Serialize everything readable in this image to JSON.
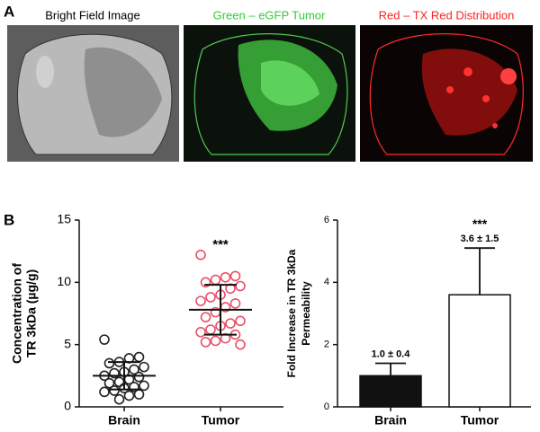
{
  "panel_labels": [
    "A",
    "B"
  ],
  "images": [
    {
      "title": "Bright Field Image",
      "color": "#000000"
    },
    {
      "title": "Green – eGFP Tumor",
      "color": "#33cc33"
    },
    {
      "title": "Red – TX Red Distribution",
      "color": "#ff2222"
    }
  ],
  "chart_data": [
    {
      "type": "dot",
      "ylabel": [
        "Concentration of",
        "TR 3kDa (µg/g)"
      ],
      "categories": [
        "Brain",
        "Tumor"
      ],
      "colors": [
        "#222222",
        "#e8506a"
      ],
      "values": [
        [
          5.4,
          4.0,
          3.9,
          3.6,
          3.5,
          3.2,
          3.0,
          2.8,
          2.7,
          2.5,
          2.4,
          2.2,
          2.0,
          1.9,
          1.7,
          1.6,
          1.5,
          1.3,
          1.2,
          1.0,
          0.9,
          0.6
        ],
        [
          12.2,
          10.5,
          10.4,
          10.2,
          10.0,
          9.7,
          9.5,
          9.0,
          8.8,
          8.5,
          8.3,
          8.0,
          7.6,
          7.2,
          6.9,
          6.7,
          6.5,
          6.2,
          6.0,
          5.8,
          5.5,
          5.3,
          5.2,
          5.0
        ]
      ],
      "means": [
        2.5,
        7.8
      ],
      "sd": [
        1.1,
        2.0
      ],
      "annotations": [
        null,
        "***"
      ],
      "ylim": [
        0,
        15
      ],
      "yticks": [
        0,
        5,
        10,
        15
      ]
    },
    {
      "type": "bar",
      "ylabel": [
        "Fold Increase in TR 3kDa",
        "Permeability"
      ],
      "categories": [
        "Brain",
        "Tumor"
      ],
      "values": [
        1.0,
        3.6
      ],
      "errors": [
        0.4,
        1.5
      ],
      "value_labels": [
        "1.0 ± 0.4",
        "3.6 ± 1.5"
      ],
      "colors": [
        "#111111",
        "#ffffff"
      ],
      "annotations": [
        null,
        "***"
      ],
      "ylim": [
        0,
        6
      ],
      "yticks": [
        0,
        2,
        4,
        6
      ]
    }
  ]
}
